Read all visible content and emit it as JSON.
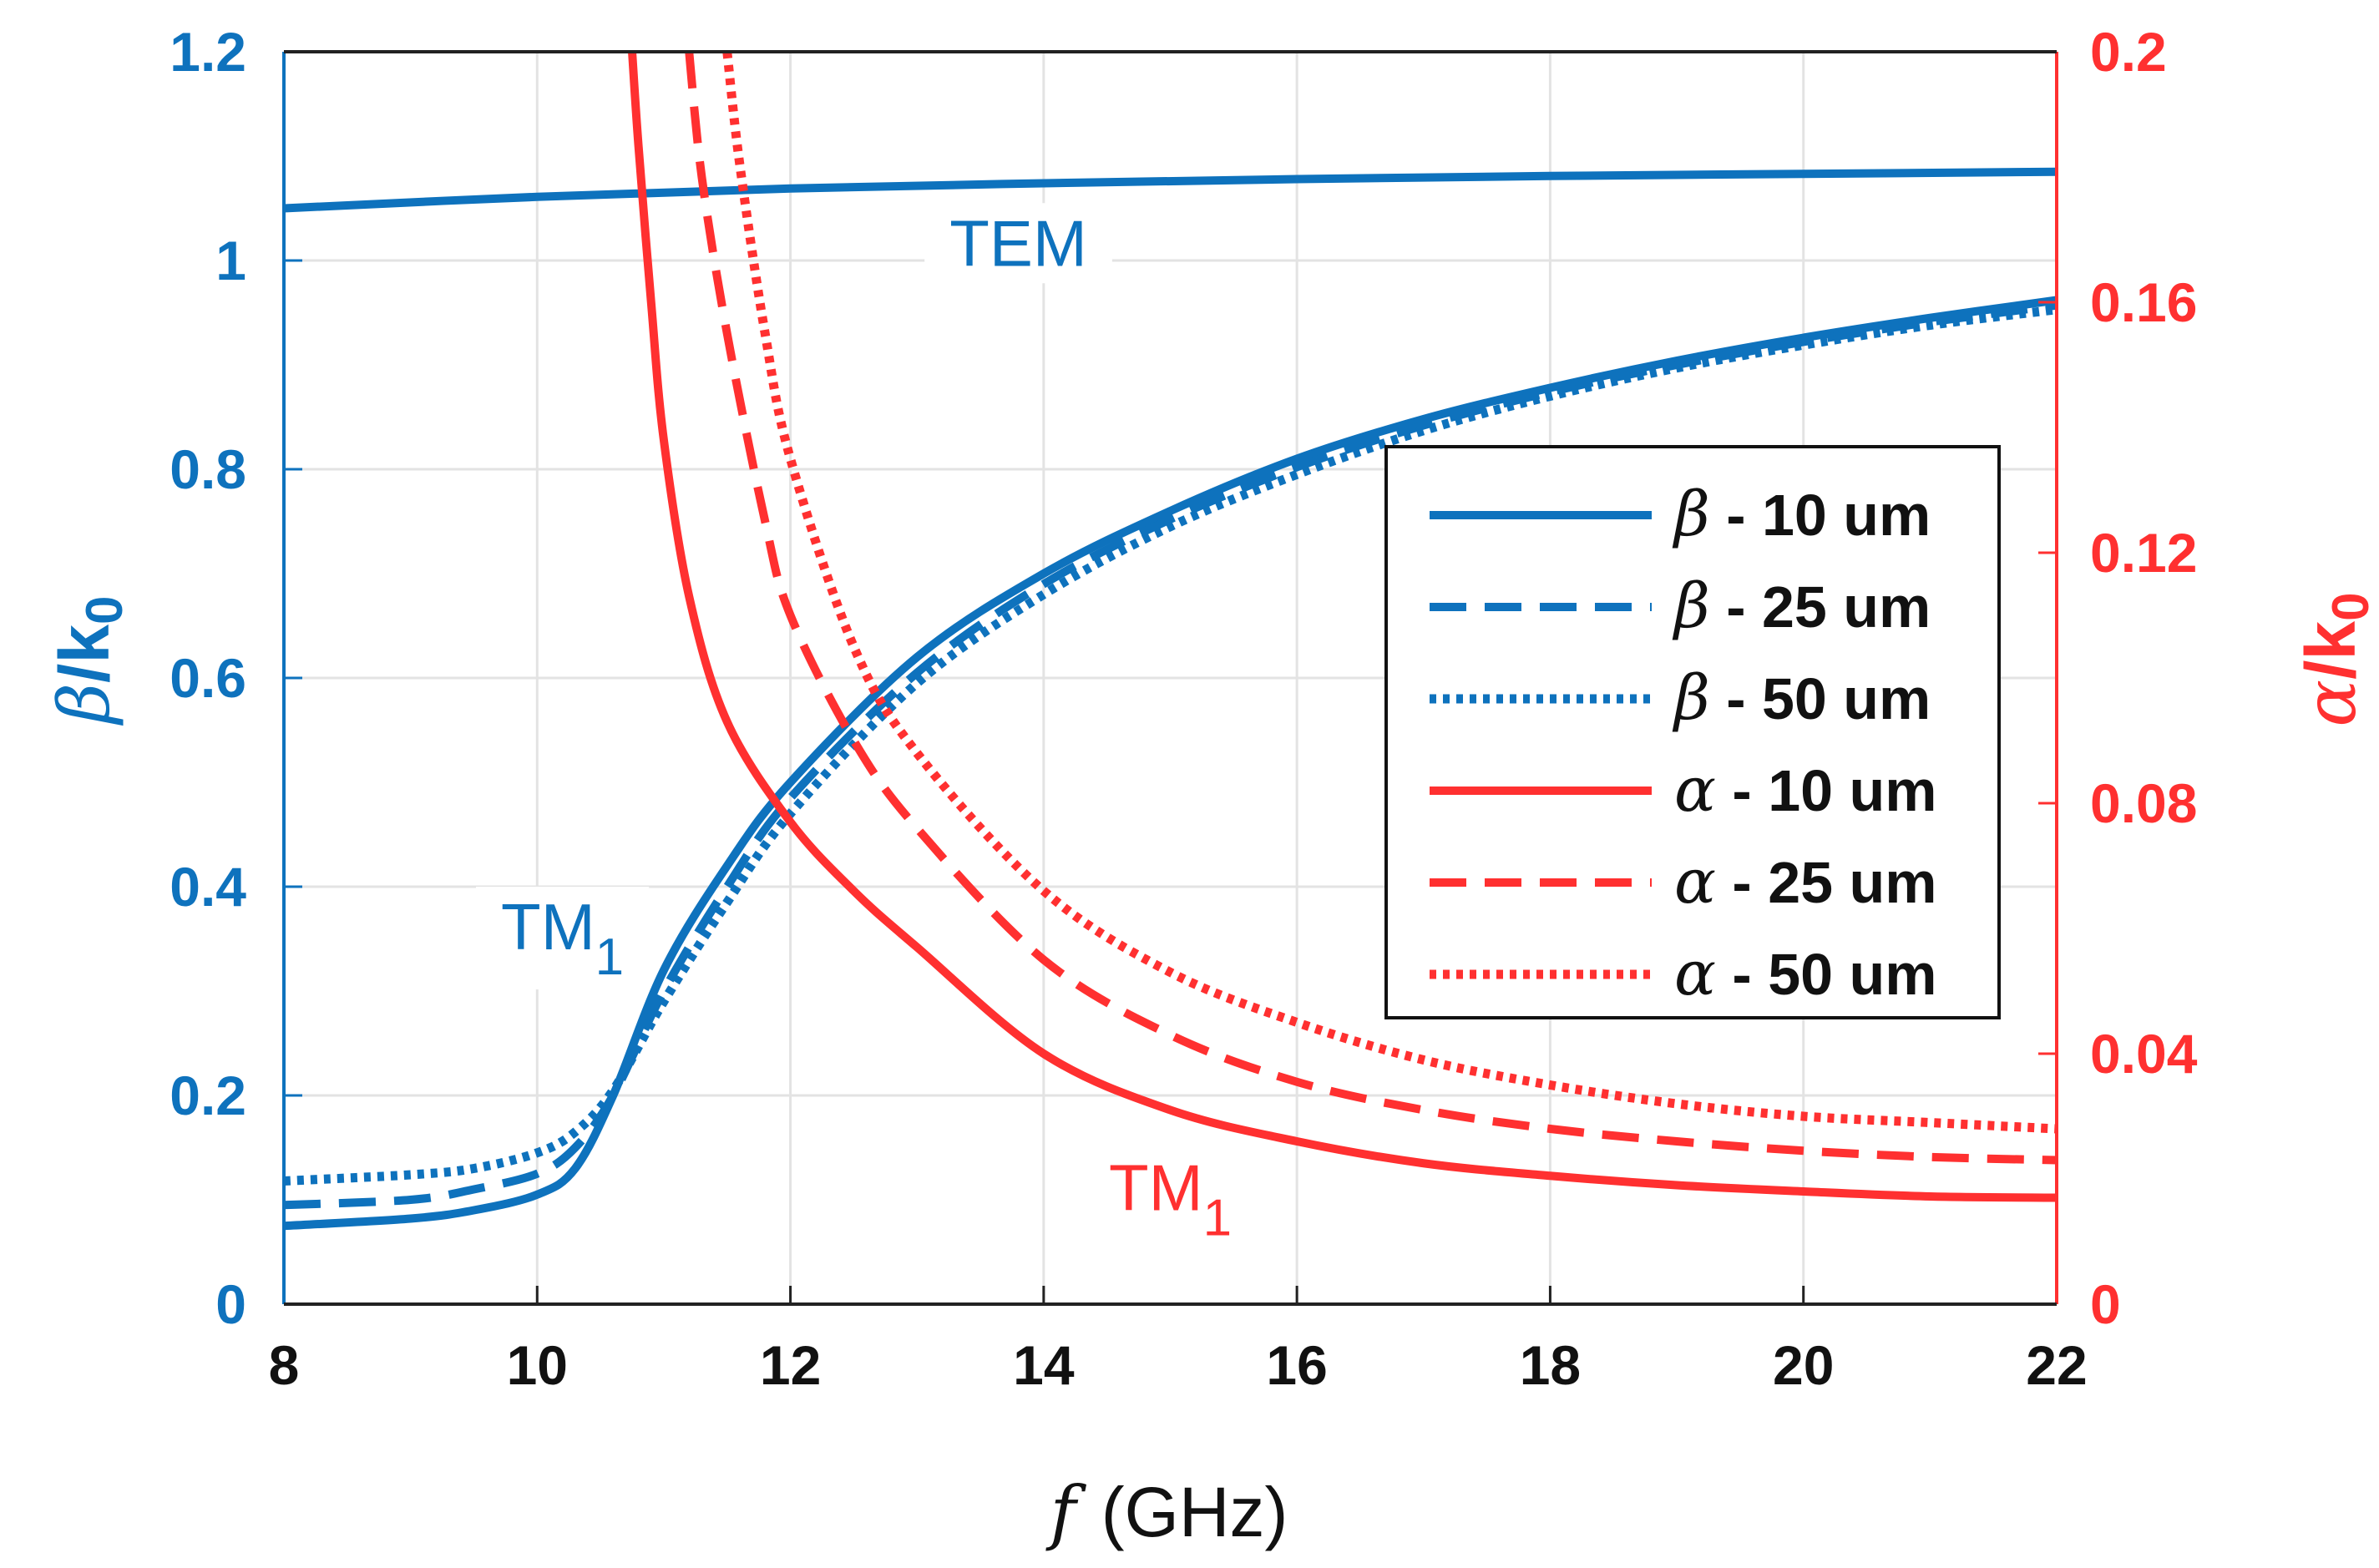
{
  "chart_data": {
    "type": "line",
    "x_label_symbol": "f",
    "x_label_units": "(GHz)",
    "y_left_label_symbol": "β",
    "y_left_label_text": "/k",
    "y_left_label_sub": "0",
    "y_right_label_symbol": "α",
    "y_right_label_text": "/k",
    "y_right_label_sub": "0",
    "xlim": [
      8,
      22
    ],
    "ylim_left": [
      0,
      1.2
    ],
    "ylim_right": [
      0,
      0.2
    ],
    "x_ticks": [
      "8",
      "10",
      "12",
      "14",
      "16",
      "18",
      "20",
      "22"
    ],
    "y_left_ticks": [
      "0",
      "0.2",
      "0.4",
      "0.6",
      "0.8",
      "1",
      "1.2"
    ],
    "y_right_ticks": [
      "0",
      "0.04",
      "0.08",
      "0.12",
      "0.16",
      "0.2"
    ],
    "grid": true,
    "legend_position": "right",
    "colors": {
      "beta": "#0E72BD",
      "alpha": "#FF3030"
    },
    "annotations": [
      {
        "text": "TEM",
        "sub": "",
        "color": "#0E72BD",
        "at_x": 13.8,
        "at_y": 0.995,
        "axis": "left"
      },
      {
        "text": "TM",
        "sub": "1",
        "color": "#0E72BD",
        "at_x": 10.2,
        "at_y": 0.34,
        "axis": "left"
      },
      {
        "text": "TM",
        "sub": "1",
        "color": "#FF3030",
        "at_x": 15.0,
        "at_y": 0.015,
        "axis": "right"
      }
    ],
    "series": [
      {
        "name": "TEM",
        "legend": false,
        "axis": "left",
        "color": "#0E72BD",
        "style": "solid",
        "x": [
          8,
          10,
          12,
          14,
          16,
          18,
          20,
          22
        ],
        "y": [
          1.05,
          1.061,
          1.069,
          1.074,
          1.078,
          1.081,
          1.083,
          1.085
        ]
      },
      {
        "name": "β - 10 um",
        "sym": "β",
        "label": " - 10 um",
        "legend": true,
        "axis": "left",
        "color": "#0E72BD",
        "style": "solid",
        "x": [
          8,
          9,
          9.5,
          10,
          10.3,
          10.6,
          11,
          11.5,
          12,
          13,
          14,
          15,
          16,
          17,
          18,
          19,
          20,
          21,
          22
        ],
        "y": [
          0.075,
          0.082,
          0.09,
          0.105,
          0.13,
          0.2,
          0.32,
          0.42,
          0.5,
          0.62,
          0.7,
          0.76,
          0.81,
          0.848,
          0.878,
          0.904,
          0.926,
          0.945,
          0.962
        ]
      },
      {
        "name": "β - 25 um",
        "sym": "β",
        "label": " - 25 um",
        "legend": true,
        "axis": "left",
        "color": "#0E72BD",
        "style": "dashed",
        "x": [
          8,
          9,
          9.5,
          10,
          10.3,
          10.6,
          11,
          11.5,
          12,
          13,
          14,
          15,
          16,
          17,
          18,
          19,
          20,
          21,
          22
        ],
        "y": [
          0.095,
          0.1,
          0.11,
          0.125,
          0.15,
          0.2,
          0.3,
          0.4,
          0.485,
          0.605,
          0.69,
          0.752,
          0.802,
          0.842,
          0.874,
          0.9,
          0.922,
          0.941,
          0.957
        ]
      },
      {
        "name": "β - 50 um",
        "sym": "β",
        "label": " - 50 um",
        "legend": true,
        "axis": "left",
        "color": "#0E72BD",
        "style": "dotted",
        "x": [
          8,
          9,
          9.5,
          10,
          10.3,
          10.6,
          11,
          11.5,
          12,
          13,
          14,
          15,
          16,
          17,
          18,
          19,
          20,
          21,
          22
        ],
        "y": [
          0.118,
          0.124,
          0.13,
          0.145,
          0.165,
          0.205,
          0.29,
          0.385,
          0.47,
          0.595,
          0.68,
          0.745,
          0.795,
          0.837,
          0.87,
          0.897,
          0.919,
          0.938,
          0.953
        ]
      },
      {
        "name": "α - 10 um",
        "sym": "α",
        "label": " - 10 um",
        "legend": true,
        "axis": "right",
        "color": "#FF3030",
        "style": "solid",
        "x": [
          10.75,
          10.8,
          10.9,
          11,
          11.2,
          11.5,
          12,
          12.5,
          13,
          14,
          15,
          16,
          17,
          18,
          19,
          20,
          21,
          22
        ],
        "y": [
          0.2,
          0.185,
          0.16,
          0.138,
          0.113,
          0.093,
          0.077,
          0.066,
          0.057,
          0.04,
          0.031,
          0.026,
          0.0225,
          0.0205,
          0.019,
          0.018,
          0.0172,
          0.017
        ]
      },
      {
        "name": "α - 25 um",
        "sym": "α",
        "label": " - 25 um",
        "legend": true,
        "axis": "right",
        "color": "#FF3030",
        "style": "dashed",
        "x": [
          11.2,
          11.3,
          11.5,
          11.8,
          12,
          12.5,
          13,
          14,
          15,
          16,
          17,
          18,
          19,
          20,
          21,
          22
        ],
        "y": [
          0.2,
          0.18,
          0.155,
          0.125,
          0.11,
          0.09,
          0.076,
          0.055,
          0.043,
          0.0355,
          0.031,
          0.028,
          0.026,
          0.0245,
          0.0235,
          0.023
        ]
      },
      {
        "name": "α - 50 um",
        "sym": "α",
        "label": " - 50 um",
        "legend": true,
        "axis": "right",
        "color": "#FF3030",
        "style": "dotted",
        "x": [
          11.5,
          11.6,
          11.8,
          12,
          12.5,
          13,
          14,
          15,
          16,
          17,
          18,
          19,
          20,
          21,
          22
        ],
        "y": [
          0.2,
          0.182,
          0.155,
          0.135,
          0.105,
          0.088,
          0.066,
          0.053,
          0.045,
          0.039,
          0.035,
          0.032,
          0.03,
          0.029,
          0.028
        ]
      }
    ]
  }
}
